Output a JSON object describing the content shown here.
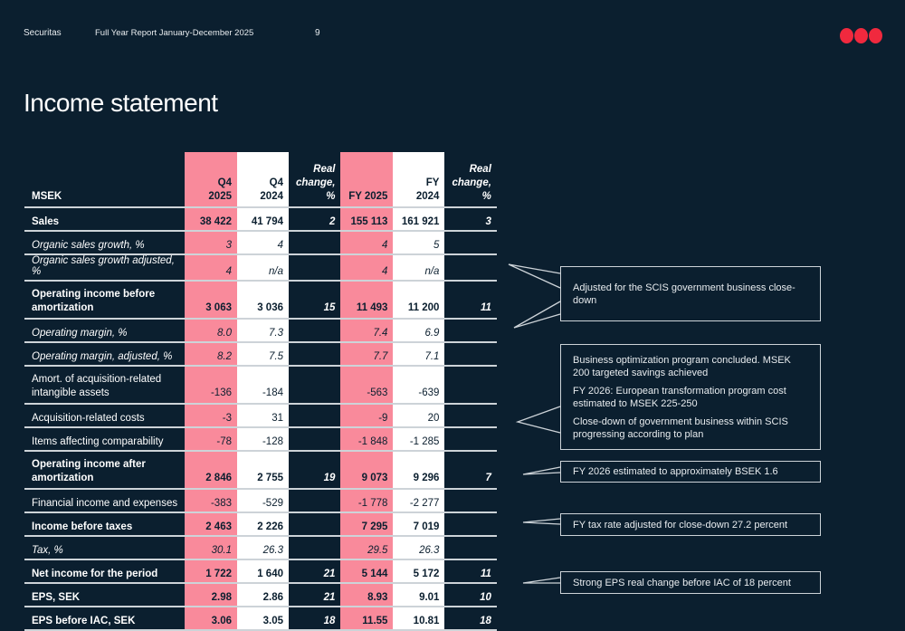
{
  "header": {
    "brand": "Securitas",
    "report": "Full Year Report January-December 2025",
    "page": "9"
  },
  "colors": {
    "background": "#0b1f2f",
    "accent_pink": "#f98a9b",
    "logo_red": "#f0293e"
  },
  "title": "Income statement",
  "table": {
    "columns": [
      "MSEK",
      "Q4 2025",
      "Q4 2024",
      "Real change, %",
      "FY 2025",
      "FY 2024",
      "Real change, %"
    ],
    "rows": [
      {
        "label": "Sales",
        "values": [
          "38 422",
          "41 794",
          "2",
          "155 113",
          "161 921",
          "3"
        ],
        "style": "bold"
      },
      {
        "label": "Organic sales growth, %",
        "values": [
          "3",
          "4",
          "",
          "4",
          "5",
          ""
        ],
        "style": "italic"
      },
      {
        "label": "Organic sales growth adjusted, %",
        "values": [
          "4",
          "n/a",
          "",
          "4",
          "n/a",
          ""
        ],
        "style": "italic"
      },
      {
        "label": "Operating income before amortization",
        "values": [
          "3 063",
          "3 036",
          "15",
          "11 493",
          "11 200",
          "11"
        ],
        "style": "bold"
      },
      {
        "label": "Operating margin, %",
        "values": [
          "8.0",
          "7.3",
          "",
          "7.4",
          "6.9",
          ""
        ],
        "style": "italic"
      },
      {
        "label": "Operating margin, adjusted, %",
        "values": [
          "8.2",
          "7.5",
          "",
          "7.7",
          "7.1",
          ""
        ],
        "style": "italic"
      },
      {
        "label": "Amort. of acquisition-related intangible assets",
        "values": [
          "-136",
          "-184",
          "",
          "-563",
          "-639",
          ""
        ],
        "style": "normal"
      },
      {
        "label": "Acquisition-related costs",
        "values": [
          "-3",
          "31",
          "",
          "-9",
          "20",
          ""
        ],
        "style": "normal"
      },
      {
        "label": "Items affecting comparability",
        "values": [
          "-78",
          "-128",
          "",
          "-1 848",
          "-1 285",
          ""
        ],
        "style": "normal"
      },
      {
        "label": "Operating income after amortization",
        "values": [
          "2 846",
          "2 755",
          "19",
          "9 073",
          "9 296",
          "7"
        ],
        "style": "bold"
      },
      {
        "label": "Financial income and expenses",
        "values": [
          "-383",
          "-529",
          "",
          "-1 778",
          "-2 277",
          ""
        ],
        "style": "normal"
      },
      {
        "label": "Income before taxes",
        "values": [
          "2 463",
          "2 226",
          "",
          "7 295",
          "7 019",
          ""
        ],
        "style": "bold"
      },
      {
        "label": "Tax, %",
        "values": [
          "30.1",
          "26.3",
          "",
          "29.5",
          "26.3",
          ""
        ],
        "style": "italic"
      },
      {
        "label": "Net income for the period",
        "values": [
          "1 722",
          "1 640",
          "21",
          "5 144",
          "5 172",
          "11"
        ],
        "style": "bold"
      },
      {
        "label": "EPS, SEK",
        "values": [
          "2.98",
          "2.86",
          "21",
          "8.93",
          "9.01",
          "10"
        ],
        "style": "bold"
      },
      {
        "label": "EPS before IAC, SEK",
        "values": [
          "3.06",
          "3.05",
          "18",
          "11.55",
          "10.81",
          "18"
        ],
        "style": "bold"
      }
    ]
  },
  "callouts": [
    {
      "lines": [
        "Adjusted for the SCIS government business close-down"
      ]
    },
    {
      "lines": [
        "Business optimization program concluded. MSEK 200 targeted savings achieved",
        "FY 2026: European transformation program cost estimated to MSEK 225-250",
        "Close-down of government business within SCIS progressing according to plan"
      ]
    },
    {
      "lines": [
        "FY 2026 estimated to approximately BSEK 1.6"
      ]
    },
    {
      "lines": [
        "FY tax rate adjusted for close-down 27.2 percent"
      ]
    },
    {
      "lines": [
        "Strong EPS real change before IAC of 18 percent"
      ]
    }
  ]
}
